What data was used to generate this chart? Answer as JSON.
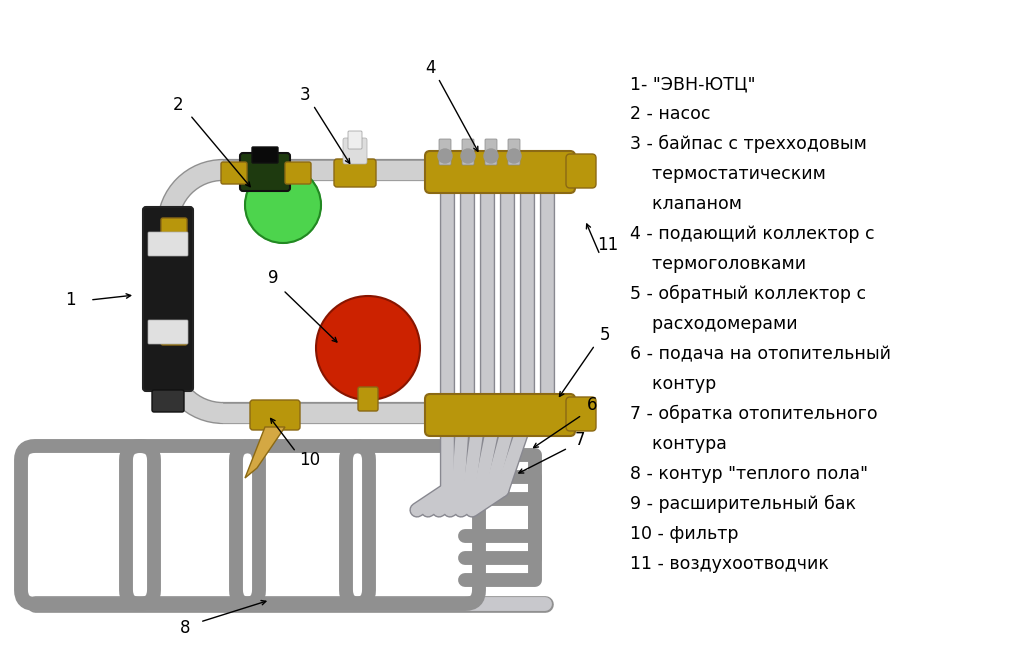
{
  "bg_color": "#ffffff",
  "pipe_color_light": "#d8d8d8",
  "pipe_color_mid": "#b0b0b0",
  "pipe_color_dark": "#888888",
  "pipe_color_edge": "#999999",
  "brass_light": "#d4a843",
  "brass_mid": "#b8960c",
  "brass_dark": "#8B6914",
  "green_light": "#4dd44d",
  "green_dark": "#228822",
  "red_bright": "#cc2200",
  "red_dark": "#881500",
  "black1": "#111111",
  "black2": "#333333",
  "legend_lines": [
    "1- \"ЭВН-ЮТЦ\"",
    "2 - насос",
    "3 - байпас с трехходовым",
    "    термостатическим",
    "    клапаном",
    "4 - подающий коллектор с",
    "    термоголовками",
    "5 - обратный коллектор с",
    "    расходомерами",
    "6 - подача на отопительный",
    "    контур",
    "7 - обратка отопительного",
    "    контура",
    "8 - контур \"теплого пола\"",
    "9 - расширительный бак",
    "10 - фильтр",
    "11 - воздухоотводчик"
  ],
  "lfs": 12
}
